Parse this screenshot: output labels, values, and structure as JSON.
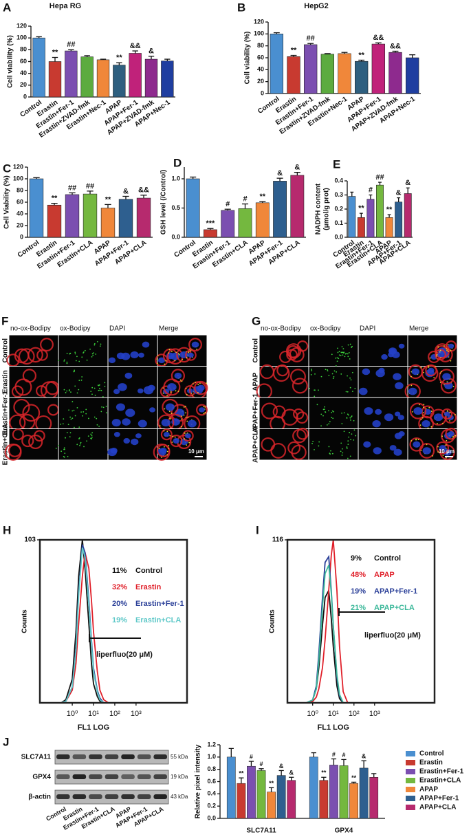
{
  "chart_data": [
    {
      "type": "bar",
      "panel": "A",
      "title": "Hepa RG",
      "ylabel": "Cell viability (%)",
      "categories": [
        "Control",
        "Erastin",
        "Erastin+Fer-1",
        "Erastin+ZVAD-fmk",
        "Erastin+Nec-1",
        "APAP",
        "APAP+Fer-1",
        "APAP+ZVAD-fmk",
        "APAP+Nec-1"
      ],
      "values": [
        100,
        60,
        78,
        68,
        63,
        54,
        74,
        64,
        61
      ],
      "errors": [
        2,
        7,
        2,
        2,
        1,
        4,
        4,
        5,
        3
      ],
      "annotations": [
        null,
        "**",
        "##",
        null,
        null,
        "**",
        "&&",
        "&",
        null
      ],
      "colors": [
        "#4a8fd0",
        "#c83a30",
        "#7b4fb0",
        "#5cab3f",
        "#f0873a",
        "#2e5f7f",
        "#c0227a",
        "#8e2a8e",
        "#1f3ea0"
      ],
      "ylim": [
        0,
        120
      ],
      "yticks": [
        0,
        20,
        40,
        60,
        80,
        100,
        120
      ]
    },
    {
      "type": "bar",
      "panel": "B",
      "title": "HepG2",
      "ylabel": "Cell viability (%)",
      "categories": [
        "Control",
        "Erastin",
        "Erastin+Fer-1",
        "Erastin+ZVAD-fmk",
        "Erastin+Nec-1",
        "APAP",
        "APAP+Fer-1",
        "APAP+ZVAD-fmk",
        "APAP+Nec-1"
      ],
      "values": [
        100,
        62,
        82,
        66,
        67,
        54,
        83,
        69,
        60
      ],
      "errors": [
        2,
        2,
        2,
        1,
        2,
        2,
        2,
        2,
        5
      ],
      "annotations": [
        null,
        "**",
        "##",
        null,
        null,
        "**",
        "&&",
        "&&",
        null
      ],
      "colors": [
        "#4a8fd0",
        "#c83a30",
        "#7b4fb0",
        "#5cab3f",
        "#f0873a",
        "#2e5f7f",
        "#c0227a",
        "#8e2a8e",
        "#1f3ea0"
      ],
      "ylim": [
        0,
        120
      ],
      "yticks": [
        0,
        20,
        40,
        60,
        80,
        100,
        120
      ]
    },
    {
      "type": "bar",
      "panel": "C",
      "ylabel": "Cell Viability (%)",
      "categories": [
        "Control",
        "Erastin",
        "Erastin+Fer-1",
        "Erastin+CLA",
        "APAP",
        "APAP+Fer-1",
        "APAP+CLA"
      ],
      "values": [
        100,
        55,
        73,
        74,
        50,
        65,
        67
      ],
      "errors": [
        2,
        3,
        3,
        5,
        6,
        5,
        5
      ],
      "annotations": [
        null,
        "**",
        "##",
        "##",
        "**",
        "&",
        "&&"
      ],
      "colors": [
        "#4a8fd0",
        "#c83a30",
        "#7b4fb0",
        "#74b83f",
        "#f0873a",
        "#2e5f8f",
        "#b62a6e"
      ],
      "ylim": [
        0,
        120
      ],
      "yticks": [
        0,
        20,
        40,
        60,
        80,
        100,
        120
      ]
    },
    {
      "type": "bar",
      "panel": "D",
      "ylabel": "GSH level  (/Control)",
      "categories": [
        "Control",
        "Erastin",
        "Erastin+Fer-1",
        "Erastin+CLA",
        "APAP",
        "APAP+Fer-1",
        "APAP+CLA"
      ],
      "values": [
        1.0,
        0.13,
        0.46,
        0.49,
        0.59,
        0.96,
        1.06
      ],
      "errors": [
        0.03,
        0.02,
        0.02,
        0.08,
        0.02,
        0.05,
        0.05
      ],
      "annotations": [
        null,
        "***",
        "#",
        "#",
        "**",
        "&",
        "&"
      ],
      "colors": [
        "#4a8fd0",
        "#c83a30",
        "#7b4fb0",
        "#74b83f",
        "#f0873a",
        "#2e5f8f",
        "#b62a6e"
      ],
      "ylim": [
        0,
        1.2
      ],
      "yticks": [
        {
          "value": 0,
          "label": "0.0"
        },
        {
          "value": 0.5,
          "label": "0.5"
        },
        {
          "value": 1,
          "label": "1.0"
        }
      ]
    },
    {
      "type": "bar",
      "panel": "E",
      "ylabel": [
        "NADPH content",
        "(μmol/g prot)"
      ],
      "categories": [
        "Control",
        "Erastin",
        "Erastin+Fer-1",
        "Erastin+CLA",
        "APAP",
        "APAP+Fer-1",
        "APAP+CLA"
      ],
      "values": [
        0.29,
        0.14,
        0.27,
        0.37,
        0.14,
        0.25,
        0.31
      ],
      "errors": [
        0.03,
        0.03,
        0.03,
        0.02,
        0.02,
        0.03,
        0.04
      ],
      "annotations": [
        null,
        "**",
        "#",
        "##",
        "**",
        "&",
        "&"
      ],
      "colors": [
        "#4a8fd0",
        "#c83a30",
        "#7b4fb0",
        "#74b83f",
        "#f0873a",
        "#2e5f8f",
        "#b62a6e"
      ],
      "ylim": [
        0,
        0.4
      ],
      "yticks": [
        {
          "value": 0,
          "label": "0.0"
        },
        0.1,
        0.2,
        0.3,
        0.4
      ]
    },
    {
      "type": "line",
      "panel": "H",
      "ylabel": "Counts",
      "xlabel": "FL1 LOG",
      "annotation": "liperfluo(20 μM)",
      "log_x": true,
      "x": [
        0.3,
        0.5,
        1,
        1.5,
        2,
        3,
        4,
        6,
        8,
        10,
        15,
        20,
        30,
        50,
        100
      ],
      "series": [
        {
          "name": "Control",
          "percent_label": "11%",
          "color": "#111111",
          "values": [
            0,
            2,
            15,
            45,
            80,
            103,
            85,
            50,
            25,
            12,
            4,
            1,
            0,
            0,
            0
          ]
        },
        {
          "name": "Erastin",
          "percent_label": "32%",
          "color": "#e0202a",
          "values": [
            0,
            1,
            8,
            25,
            50,
            80,
            95,
            85,
            65,
            45,
            20,
            8,
            2,
            0,
            0
          ]
        },
        {
          "name": "Erastin+Fer-1",
          "percent_label": "20%",
          "color": "#2a3f98",
          "values": [
            0,
            1,
            10,
            35,
            70,
            100,
            95,
            65,
            40,
            22,
            8,
            3,
            0,
            0,
            0
          ]
        },
        {
          "name": "Erastin+CLA",
          "percent_label": "19%",
          "color": "#5ec8c8",
          "values": [
            0,
            1,
            10,
            33,
            68,
            98,
            92,
            62,
            38,
            20,
            7,
            2,
            0,
            0,
            0
          ]
        }
      ],
      "xlim": [
        0.03,
        250000
      ],
      "xticks": [
        {
          "value": 1,
          "label": "10⁰"
        },
        {
          "value": 10,
          "label": "10¹"
        },
        {
          "value": 100,
          "label": "10²"
        },
        {
          "value": 1000,
          "label": "10³"
        }
      ],
      "ylim": [
        0,
        103
      ],
      "yticks": [
        103
      ]
    },
    {
      "type": "line",
      "panel": "I",
      "ylabel": "Counts",
      "xlabel": "FL1 LOG",
      "annotation": "liperfluo(20 μM)",
      "log_x": true,
      "x": [
        0.3,
        0.5,
        1,
        1.5,
        2,
        3,
        4,
        6,
        8,
        10,
        15,
        20,
        30,
        50,
        100
      ],
      "series": [
        {
          "name": "Control",
          "percent_label": "9%",
          "color": "#111111",
          "values": [
            0,
            0,
            2,
            10,
            25,
            55,
            75,
            80,
            60,
            40,
            12,
            3,
            0,
            0,
            0
          ]
        },
        {
          "name": "APAP",
          "percent_label": "48%",
          "color": "#e0202a",
          "values": [
            0,
            0,
            1,
            4,
            10,
            25,
            45,
            80,
            105,
            116,
            80,
            40,
            8,
            0,
            0
          ]
        },
        {
          "name": "APAP+Fer-1",
          "percent_label": "19%",
          "color": "#2a3f98",
          "values": [
            0,
            0,
            2,
            12,
            35,
            75,
            100,
            104,
            80,
            55,
            18,
            5,
            0,
            0,
            0
          ]
        },
        {
          "name": "APAP+CLA",
          "percent_label": "21%",
          "color": "#3cb89a",
          "values": [
            0,
            0,
            2,
            10,
            30,
            68,
            92,
            98,
            78,
            55,
            20,
            6,
            0,
            0,
            0
          ]
        }
      ],
      "xlim": [
        0.06,
        800000
      ],
      "xticks": [
        {
          "value": 1,
          "label": "10⁰"
        },
        {
          "value": 10,
          "label": "10¹"
        },
        {
          "value": 100,
          "label": "10²"
        },
        {
          "value": 1000,
          "label": "10³"
        }
      ],
      "ylim": [
        0,
        116
      ],
      "yticks": [
        116
      ]
    },
    {
      "type": "grouped-bar",
      "panel": "J",
      "ylabel": "Relative pixel intensity",
      "categories": [
        "SLC7A11",
        "GPX4"
      ],
      "series": [
        {
          "name": "Control",
          "color": "#4a8fd0",
          "values": [
            1.0,
            1.0
          ],
          "errors": [
            0.14,
            0.07
          ],
          "annotations": [
            null,
            null
          ]
        },
        {
          "name": "Erastin",
          "color": "#c83a30",
          "values": [
            0.57,
            0.62
          ],
          "errors": [
            0.09,
            0.05
          ],
          "annotations": [
            "**",
            "**"
          ]
        },
        {
          "name": "Erastin+Fer-1",
          "color": "#7b4fb0",
          "values": [
            0.85,
            0.87
          ],
          "errors": [
            0.08,
            0.1
          ],
          "annotations": [
            "#",
            "#"
          ]
        },
        {
          "name": "Erastin+CLA",
          "color": "#74b83f",
          "values": [
            0.78,
            0.86
          ],
          "errors": [
            0.03,
            0.1
          ],
          "annotations": [
            "#",
            "#"
          ]
        },
        {
          "name": "APAP",
          "color": "#f0873a",
          "values": [
            0.43,
            0.57
          ],
          "errors": [
            0.07,
            0.02
          ],
          "annotations": [
            "**",
            "**"
          ]
        },
        {
          "name": "APAP+Fer-1",
          "color": "#2e5f8f",
          "values": [
            0.7,
            0.82
          ],
          "errors": [
            0.08,
            0.12
          ],
          "annotations": [
            "&",
            "&"
          ]
        },
        {
          "name": "APAP+CLA",
          "color": "#b62a6e",
          "values": [
            0.62,
            0.67
          ],
          "errors": [
            0.05,
            0.06
          ],
          "annotations": [
            "&",
            null
          ]
        }
      ],
      "ylim": [
        0,
        1.2
      ],
      "yticks": [
        {
          "value": 0,
          "label": "0.0"
        },
        0.2,
        0.4,
        0.6,
        0.8,
        {
          "value": 1,
          "label": "1.0"
        },
        1.2
      ]
    }
  ],
  "micrographs": [
    {
      "panel": "F",
      "columns": [
        "no-ox-Bodipy",
        "ox-Bodipy",
        "DAPI",
        "Merge"
      ],
      "rows": [
        "Control",
        "Erastin",
        "Erastin+Fer-1",
        "Erastin+CLA"
      ],
      "scale_bar": "10 μm"
    },
    {
      "panel": "G",
      "columns": [
        "no-ox-Bodipy",
        "ox-Bodipy",
        "DAPI",
        "Merge"
      ],
      "rows": [
        "Control",
        "APAP",
        "APAP+Fer-1",
        "APAP+CLA"
      ],
      "scale_bar": "10 μm"
    }
  ],
  "blot": {
    "proteins": [
      "SLC7A11",
      "GPX4",
      "β-actin"
    ],
    "sizes": [
      "55 kDa",
      "19 kDa",
      "43 kDa"
    ],
    "lanes": [
      "Control",
      "Erastin",
      "Erastin+Fer-1",
      "Erastin+CLA",
      "APAP",
      "APAP+Fer-1",
      "APAP+CLA"
    ]
  }
}
